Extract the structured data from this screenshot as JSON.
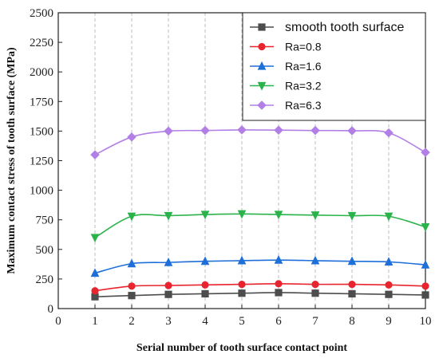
{
  "chart_data": {
    "type": "line",
    "title": "",
    "xlabel": "Serial number of tooth surface contact point",
    "ylabel": "Maximum contact stress of tooth surface (MPa)",
    "xlim": [
      0,
      10
    ],
    "ylim": [
      0,
      2500
    ],
    "x_ticks": [
      "0",
      "1",
      "2",
      "3",
      "4",
      "5",
      "6",
      "7",
      "8",
      "9",
      "10"
    ],
    "y_ticks": [
      "0",
      "250",
      "500",
      "750",
      "1000",
      "1250",
      "1500",
      "1750",
      "2000",
      "2250",
      "2500"
    ],
    "grid": "vertical dashed",
    "legend_position": "top-right",
    "x": [
      1,
      2,
      3,
      4,
      5,
      6,
      7,
      8,
      9,
      10
    ],
    "series": [
      {
        "name": "smooth tooth surface",
        "color": "#4d4d4d",
        "marker": "square",
        "values": [
          100,
          110,
          120,
          125,
          130,
          135,
          130,
          125,
          120,
          115
        ]
      },
      {
        "name": "Ra=0.8",
        "color": "#e8252e",
        "marker": "circle",
        "values": [
          150,
          190,
          195,
          200,
          205,
          210,
          205,
          205,
          200,
          190
        ]
      },
      {
        "name": "Ra=1.6",
        "color": "#1e6fd9",
        "marker": "triangle-up",
        "values": [
          300,
          380,
          390,
          400,
          405,
          410,
          405,
          400,
          395,
          370
        ]
      },
      {
        "name": "Ra=3.2",
        "color": "#2bb34b",
        "marker": "triangle-down",
        "values": [
          600,
          780,
          785,
          795,
          800,
          795,
          790,
          785,
          780,
          690
        ]
      },
      {
        "name": "Ra=6.3",
        "color": "#b27fe6",
        "marker": "diamond",
        "values": [
          1300,
          1450,
          1500,
          1505,
          1510,
          1508,
          1505,
          1503,
          1485,
          1320
        ]
      }
    ]
  }
}
